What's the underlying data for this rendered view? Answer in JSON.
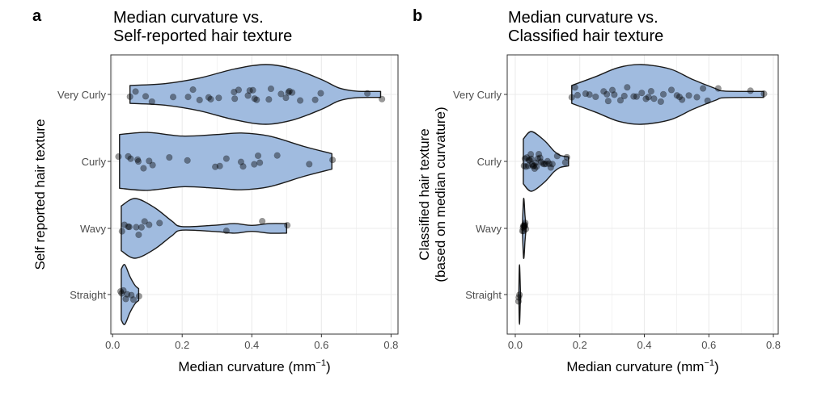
{
  "style": {
    "violin_fill": "#a0bbdf",
    "violin_stroke": "#1a1a1a",
    "point_color": "#000000",
    "point_opacity": 0.4,
    "grid_color": "#ebebeb",
    "panel_border": "#333333"
  },
  "chart_data": [
    {
      "panel_label": "a",
      "type": "violin",
      "orientation": "horizontal",
      "title_lines": [
        " Median curvature vs.",
        "Self-reported hair texture"
      ],
      "xlabel": "Median curvature (mm",
      "xlabel_sup": "−1",
      "xlabel_close": ")",
      "ylabel_lines": [
        "Self reported hair texture"
      ],
      "xlim": [
        -0.005,
        0.82
      ],
      "xticks": [
        0.0,
        0.2,
        0.4,
        0.6,
        0.8
      ],
      "xtick_labels": [
        "0.0",
        "0.2",
        "0.4",
        "0.6",
        "0.8"
      ],
      "categories": [
        "Very Curly",
        "Curly",
        "Wavy",
        "Straight"
      ],
      "grid": true,
      "violins": [
        {
          "category": "Very Curly",
          "density_profile": [
            [
              0.05,
              0.3
            ],
            [
              0.15,
              0.36
            ],
            [
              0.25,
              0.55
            ],
            [
              0.35,
              0.85
            ],
            [
              0.44,
              1.0
            ],
            [
              0.52,
              0.85
            ],
            [
              0.6,
              0.5
            ],
            [
              0.65,
              0.22
            ],
            [
              0.7,
              0.11
            ],
            [
              0.77,
              0.1
            ]
          ],
          "points": [
            0.05,
            0.066,
            0.095,
            0.113,
            0.174,
            0.217,
            0.231,
            0.25,
            0.276,
            0.282,
            0.305,
            0.349,
            0.351,
            0.362,
            0.389,
            0.394,
            0.403,
            0.408,
            0.414,
            0.449,
            0.455,
            0.484,
            0.498,
            0.505,
            0.508,
            0.516,
            0.539,
            0.582,
            0.598,
            0.732,
            0.774
          ]
        },
        {
          "category": "Curly",
          "density_profile": [
            [
              0.02,
              0.9
            ],
            [
              0.1,
              0.97
            ],
            [
              0.2,
              0.85
            ],
            [
              0.3,
              0.9
            ],
            [
              0.37,
              0.95
            ],
            [
              0.45,
              0.85
            ],
            [
              0.55,
              0.5
            ],
            [
              0.63,
              0.26
            ]
          ],
          "points": [
            0.017,
            0.045,
            0.052,
            0.072,
            0.074,
            0.089,
            0.105,
            0.115,
            0.163,
            0.215,
            0.295,
            0.308,
            0.327,
            0.369,
            0.375,
            0.407,
            0.418,
            0.423,
            0.473,
            0.565,
            0.632
          ]
        },
        {
          "category": "Wavy",
          "density_profile": [
            [
              0.025,
              0.75
            ],
            [
              0.065,
              1.0
            ],
            [
              0.12,
              0.7
            ],
            [
              0.17,
              0.25
            ],
            [
              0.2,
              0.06
            ],
            [
              0.3,
              0.11
            ],
            [
              0.35,
              0.16
            ],
            [
              0.4,
              0.1
            ],
            [
              0.45,
              0.16
            ],
            [
              0.5,
              0.16
            ]
          ],
          "points": [
            0.027,
            0.034,
            0.045,
            0.048,
            0.068,
            0.075,
            0.083,
            0.092,
            0.105,
            0.135,
            0.327,
            0.43,
            0.502
          ]
        },
        {
          "category": "Straight",
          "density_profile": [
            [
              0.025,
              0.85
            ],
            [
              0.035,
              1.0
            ],
            [
              0.05,
              0.6
            ],
            [
              0.065,
              0.3
            ],
            [
              0.075,
              0.2
            ]
          ],
          "points": [
            0.023,
            0.026,
            0.031,
            0.038,
            0.042,
            0.054,
            0.06,
            0.076
          ]
        }
      ]
    },
    {
      "panel_label": "b",
      "type": "violin",
      "orientation": "horizontal",
      "title_lines": [
        "Median curvature vs.",
        "Classified hair texture"
      ],
      "xlabel": "Median curvature (mm",
      "xlabel_sup": "−1",
      "xlabel_close": ")",
      "ylabel_lines": [
        "Classified hair texture",
        "(based on median curvature)"
      ],
      "xlim": [
        -0.025,
        0.815
      ],
      "xticks": [
        0.0,
        0.2,
        0.4,
        0.6,
        0.8
      ],
      "xtick_labels": [
        "0.0",
        "0.2",
        "0.4",
        "0.6",
        "0.8"
      ],
      "categories": [
        "Very Curly",
        "Curly",
        "Wavy",
        "Straight"
      ],
      "grid": true,
      "violins": [
        {
          "category": "Very Curly",
          "density_profile": [
            [
              0.175,
              0.3
            ],
            [
              0.25,
              0.6
            ],
            [
              0.32,
              0.9
            ],
            [
              0.39,
              1.0
            ],
            [
              0.48,
              0.85
            ],
            [
              0.55,
              0.5
            ],
            [
              0.62,
              0.2
            ],
            [
              0.65,
              0.11
            ],
            [
              0.77,
              0.1
            ]
          ],
          "points": [
            0.175,
            0.185,
            0.193,
            0.218,
            0.23,
            0.249,
            0.274,
            0.284,
            0.288,
            0.301,
            0.307,
            0.326,
            0.338,
            0.347,
            0.367,
            0.376,
            0.392,
            0.405,
            0.413,
            0.421,
            0.43,
            0.451,
            0.459,
            0.484,
            0.501,
            0.509,
            0.517,
            0.538,
            0.563,
            0.582,
            0.596,
            0.629,
            0.729,
            0.771
          ]
        },
        {
          "category": "Curly",
          "density_profile": [
            [
              0.025,
              0.75
            ],
            [
              0.05,
              1.0
            ],
            [
              0.09,
              0.7
            ],
            [
              0.12,
              0.35
            ],
            [
              0.14,
              0.2
            ],
            [
              0.165,
              0.15
            ]
          ],
          "points": [
            0.027,
            0.03,
            0.033,
            0.036,
            0.04,
            0.042,
            0.045,
            0.048,
            0.05,
            0.052,
            0.055,
            0.058,
            0.06,
            0.063,
            0.066,
            0.07,
            0.073,
            0.077,
            0.08,
            0.085,
            0.09,
            0.095,
            0.1,
            0.105,
            0.11,
            0.115,
            0.13,
            0.155,
            0.16
          ]
        },
        {
          "category": "Wavy",
          "density_profile": [
            [
              0.022,
              0.05
            ],
            [
              0.026,
              1.0
            ],
            [
              0.03,
              0.45
            ],
            [
              0.033,
              0.05
            ]
          ],
          "points": [
            0.022,
            0.024,
            0.025,
            0.026,
            0.027,
            0.028,
            0.029,
            0.03,
            0.031,
            0.033
          ]
        },
        {
          "category": "Straight",
          "density_profile": [
            [
              0.011,
              0.05
            ],
            [
              0.013,
              1.0
            ],
            [
              0.016,
              0.05
            ]
          ],
          "points": [
            0.01,
            0.011,
            0.013
          ]
        }
      ]
    }
  ]
}
